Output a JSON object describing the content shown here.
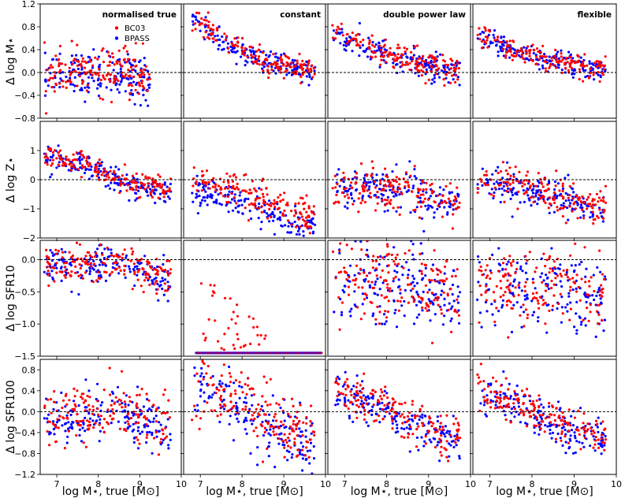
{
  "colors": {
    "bc03": "#ff0000",
    "bpass": "#0000ff",
    "zero_line": "#000000",
    "frame": "#000000"
  },
  "columns": [
    {
      "title": "normalised true"
    },
    {
      "title": "constant"
    },
    {
      "title": "double power law"
    },
    {
      "title": "flexible"
    }
  ],
  "legend": {
    "placement": "top-left panel, upper right",
    "entries": [
      "BC03",
      "BPASS"
    ]
  },
  "x_axis": {
    "label": "log M⋆, true [M⊙]",
    "columns": [
      {
        "range": [
          6.6,
          10.0
        ],
        "ticks": [
          7,
          8,
          9,
          10
        ],
        "tick_labels": [
          "7",
          "8",
          "9",
          "10"
        ]
      },
      {
        "range": [
          6.6,
          10.0
        ],
        "ticks": [
          7,
          8,
          9,
          10
        ],
        "tick_labels": [
          "7",
          "8",
          "9",
          "10"
        ]
      },
      {
        "range": [
          6.6,
          10.0
        ],
        "ticks": [
          7,
          8,
          9,
          10
        ],
        "tick_labels": [
          "7",
          "8",
          "9",
          "10"
        ]
      },
      {
        "range": [
          6.6,
          10.0
        ],
        "ticks": [
          7,
          8,
          9,
          10
        ],
        "tick_labels": [
          "7",
          "8",
          "9",
          "10"
        ]
      }
    ]
  },
  "rows": [
    {
      "ylabel": "Δ log M⋆",
      "ylim": [
        -0.8,
        1.2
      ],
      "ticks": [
        -0.8,
        -0.4,
        0.0,
        0.4,
        0.8,
        1.2
      ],
      "tick_labels": [
        "−0.8",
        "−0.4",
        "0.0",
        "0.4",
        "0.8",
        "1.2"
      ]
    },
    {
      "ylabel": "Δ log Z⋆",
      "ylim": [
        -2.0,
        2.0
      ],
      "ticks": [
        -2,
        -1,
        0,
        1
      ],
      "tick_labels": [
        "−2",
        "−1",
        "0",
        "1"
      ]
    },
    {
      "ylabel": "Δ log SFR10",
      "ylim": [
        -1.5,
        0.3
      ],
      "ticks": [
        -1.5,
        -1.0,
        -0.5,
        0.0
      ],
      "tick_labels": [
        "−1.5",
        "−1.0",
        "−0.5",
        "0.0"
      ]
    },
    {
      "ylabel": "Δ log SFR100",
      "ylim": [
        -1.2,
        1.0
      ],
      "ticks": [
        -1.2,
        -0.8,
        -0.4,
        0.0,
        0.4,
        0.8
      ],
      "tick_labels": [
        "−1.2",
        "−0.8",
        "−0.4",
        "0.0",
        "0.4",
        "0.8"
      ]
    }
  ],
  "chart_data": {
    "type": "scatter",
    "layout": "4 rows x 4 columns of panels",
    "reference_line": {
      "y": 0,
      "style": "dashed"
    },
    "series_names": [
      "BC03",
      "BPASS"
    ],
    "panels": [
      {
        "row": 0,
        "col": 0,
        "trend": {
          "x": [
            6.8,
            7.5,
            8.0,
            8.5,
            9.0
          ],
          "y_mean": [
            -0.05,
            0.0,
            0.0,
            0.05,
            -0.1
          ],
          "scatter": 0.2
        },
        "sentinel": null
      },
      {
        "row": 0,
        "col": 1,
        "trend": {
          "x": [
            6.9,
            7.4,
            8.0,
            8.5,
            9.5
          ],
          "y_mean": [
            0.9,
            0.6,
            0.35,
            0.2,
            0.05
          ],
          "scatter": 0.1
        },
        "sentinel": null
      },
      {
        "row": 0,
        "col": 2,
        "trend": {
          "x": [
            6.8,
            7.5,
            8.0,
            8.5,
            9.5
          ],
          "y_mean": [
            0.7,
            0.45,
            0.3,
            0.2,
            0.05
          ],
          "scatter": 0.12
        },
        "sentinel": null
      },
      {
        "row": 0,
        "col": 3,
        "trend": {
          "x": [
            6.8,
            7.5,
            8.0,
            8.5,
            9.5
          ],
          "y_mean": [
            0.65,
            0.4,
            0.25,
            0.2,
            0.05
          ],
          "scatter": 0.1
        },
        "sentinel": null
      },
      {
        "row": 1,
        "col": 0,
        "trend": {
          "x": [
            6.8,
            7.5,
            8.0,
            8.5,
            9.5
          ],
          "y_mean": [
            0.8,
            0.6,
            0.35,
            0.0,
            -0.4
          ],
          "scatter": 0.2
        },
        "sentinel": null
      },
      {
        "row": 1,
        "col": 1,
        "trend": {
          "x": [
            6.9,
            7.5,
            8.0,
            8.5,
            9.5
          ],
          "y_mean": [
            -0.2,
            -0.5,
            -0.6,
            -0.9,
            -1.5
          ],
          "scatter": 0.3
        },
        "sentinel": null
      },
      {
        "row": 1,
        "col": 2,
        "trend": {
          "x": [
            6.8,
            7.5,
            8.0,
            8.5,
            9.5
          ],
          "y_mean": [
            -0.2,
            -0.25,
            -0.3,
            -0.4,
            -0.8
          ],
          "scatter": 0.35
        },
        "sentinel": null
      },
      {
        "row": 1,
        "col": 3,
        "trend": {
          "x": [
            6.8,
            7.5,
            8.0,
            8.5,
            9.5
          ],
          "y_mean": [
            -0.1,
            -0.2,
            -0.35,
            -0.5,
            -0.9
          ],
          "scatter": 0.3
        },
        "sentinel": null
      },
      {
        "row": 2,
        "col": 0,
        "trend": {
          "x": [
            6.8,
            7.5,
            8.0,
            8.5,
            9.5
          ],
          "y_mean": [
            -0.1,
            -0.1,
            -0.05,
            -0.05,
            -0.3
          ],
          "scatter": 0.15
        },
        "sentinel": null
      },
      {
        "row": 2,
        "col": 1,
        "trend": {
          "x": [
            7.0,
            7.5,
            8.0,
            8.5,
            9.5
          ],
          "y_mean": [
            -1.45,
            -1.45,
            -1.45,
            -1.45,
            -1.45
          ],
          "scatter": 0.0
        },
        "sentinel": {
          "y": -1.45,
          "x_range": [
            6.9,
            9.9
          ],
          "count": 110,
          "extra_red_above": true
        }
      },
      {
        "row": 2,
        "col": 2,
        "trend": {
          "x": [
            6.8,
            7.5,
            8.0,
            8.5,
            9.5
          ],
          "y_mean": [
            -0.35,
            -0.4,
            -0.35,
            -0.3,
            -0.5
          ],
          "scatter": 0.3
        },
        "sentinel": null
      },
      {
        "row": 2,
        "col": 3,
        "trend": {
          "x": [
            6.8,
            7.5,
            8.0,
            8.5,
            9.5
          ],
          "y_mean": [
            -0.35,
            -0.4,
            -0.45,
            -0.35,
            -0.6
          ],
          "scatter": 0.3
        },
        "sentinel": null
      },
      {
        "row": 3,
        "col": 0,
        "trend": {
          "x": [
            6.8,
            7.5,
            8.0,
            8.5,
            9.5
          ],
          "y_mean": [
            -0.1,
            -0.05,
            0.0,
            0.0,
            -0.3
          ],
          "scatter": 0.25
        },
        "sentinel": null
      },
      {
        "row": 3,
        "col": 1,
        "trend": {
          "x": [
            6.9,
            7.5,
            8.0,
            8.5,
            9.5
          ],
          "y_mean": [
            0.55,
            0.4,
            0.1,
            -0.2,
            -0.6
          ],
          "scatter": 0.3
        },
        "sentinel": null
      },
      {
        "row": 3,
        "col": 2,
        "trend": {
          "x": [
            6.8,
            7.5,
            8.0,
            8.5,
            9.5
          ],
          "y_mean": [
            0.4,
            0.2,
            0.0,
            -0.2,
            -0.5
          ],
          "scatter": 0.2
        },
        "sentinel": null
      },
      {
        "row": 3,
        "col": 3,
        "trend": {
          "x": [
            6.8,
            7.5,
            8.0,
            8.5,
            9.5
          ],
          "y_mean": [
            0.45,
            0.2,
            0.0,
            -0.2,
            -0.5
          ],
          "scatter": 0.2
        },
        "sentinel": null
      }
    ],
    "points_per_series": 170
  }
}
